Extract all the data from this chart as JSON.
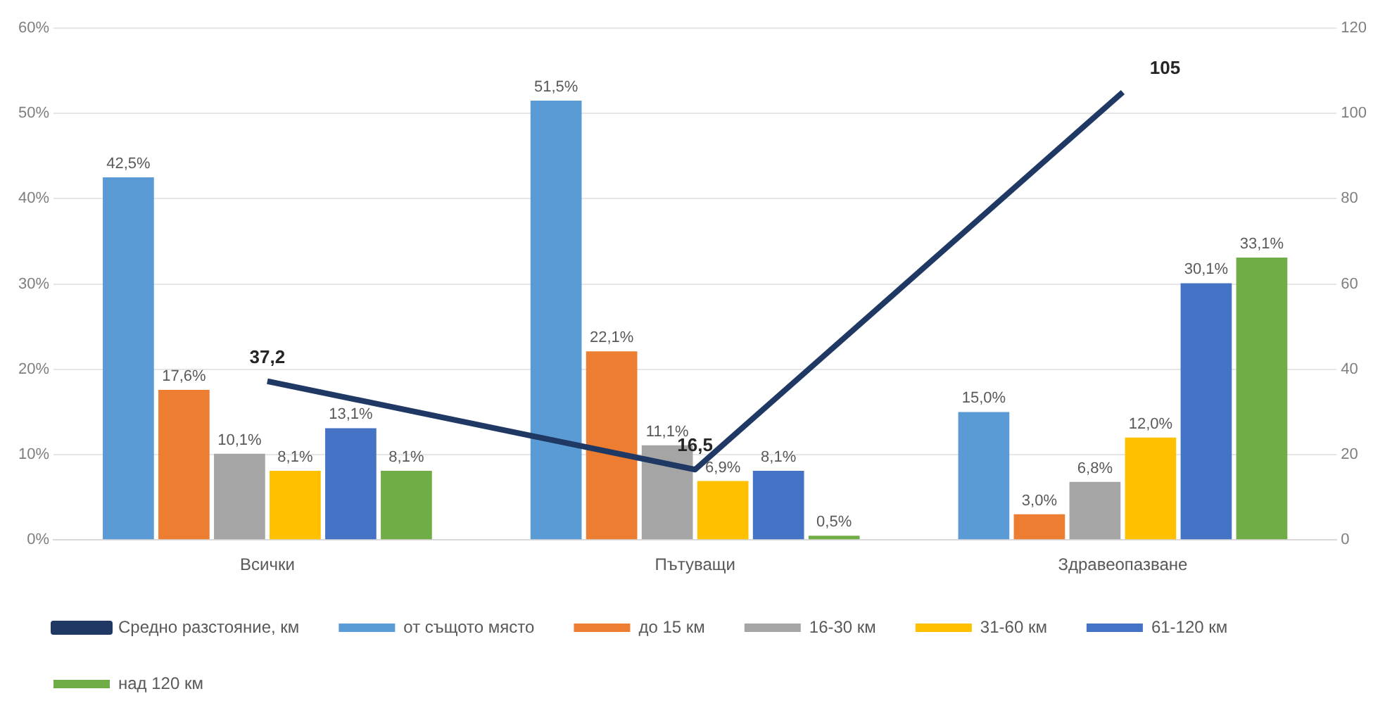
{
  "chart_data": {
    "type": "bar",
    "categories": [
      "Всички",
      "Пътуващи",
      "Здравеопазване"
    ],
    "series": [
      {
        "name": "от същото място",
        "color": "#5b9bd5",
        "values": [
          42.5,
          51.5,
          15.0
        ],
        "value_labels": [
          "42,5%",
          "51,5%",
          "15,0%"
        ]
      },
      {
        "name": "до 15 км",
        "color": "#ed7d31",
        "values": [
          17.6,
          22.1,
          3.0
        ],
        "value_labels": [
          "17,6%",
          "22,1%",
          "3,0%"
        ]
      },
      {
        "name": "16-30 км",
        "color": "#a5a5a5",
        "values": [
          10.1,
          11.1,
          6.8
        ],
        "value_labels": [
          "10,1%",
          "11,1%",
          "6,8%"
        ]
      },
      {
        "name": "31-60 км",
        "color": "#ffc000",
        "values": [
          8.1,
          6.9,
          12.0
        ],
        "value_labels": [
          "8,1%",
          "6,9%",
          "12,0%"
        ]
      },
      {
        "name": "61-120 км",
        "color": "#4472c4",
        "values": [
          13.1,
          8.1,
          30.1
        ],
        "value_labels": [
          "13,1%",
          "8,1%",
          "30,1%"
        ]
      },
      {
        "name": "над 120 км",
        "color": "#70ad47",
        "values": [
          8.1,
          0.5,
          33.1
        ],
        "value_labels": [
          "8,1%",
          "0,5%",
          "33,1%"
        ]
      },
      {
        "name": "Средно разстояние, км",
        "type": "line",
        "axis": "y2",
        "color": "#1f3864",
        "values": [
          37.2,
          16.5,
          105
        ],
        "value_labels": [
          "37,2",
          "16,5",
          "105"
        ]
      }
    ],
    "ylim": [
      0,
      60
    ],
    "yticks": [
      {
        "value": 0,
        "label": "0%"
      },
      {
        "value": 10,
        "label": "10%"
      },
      {
        "value": 20,
        "label": "20%"
      },
      {
        "value": 30,
        "label": "30%"
      },
      {
        "value": 40,
        "label": "40%"
      },
      {
        "value": 50,
        "label": "50%"
      },
      {
        "value": 60,
        "label": "60%"
      }
    ],
    "y2lim": [
      0,
      120
    ],
    "y2ticks": [
      0,
      20,
      40,
      60,
      80,
      100,
      120
    ],
    "grid": "y",
    "legend": "bottom",
    "marker": "none"
  }
}
